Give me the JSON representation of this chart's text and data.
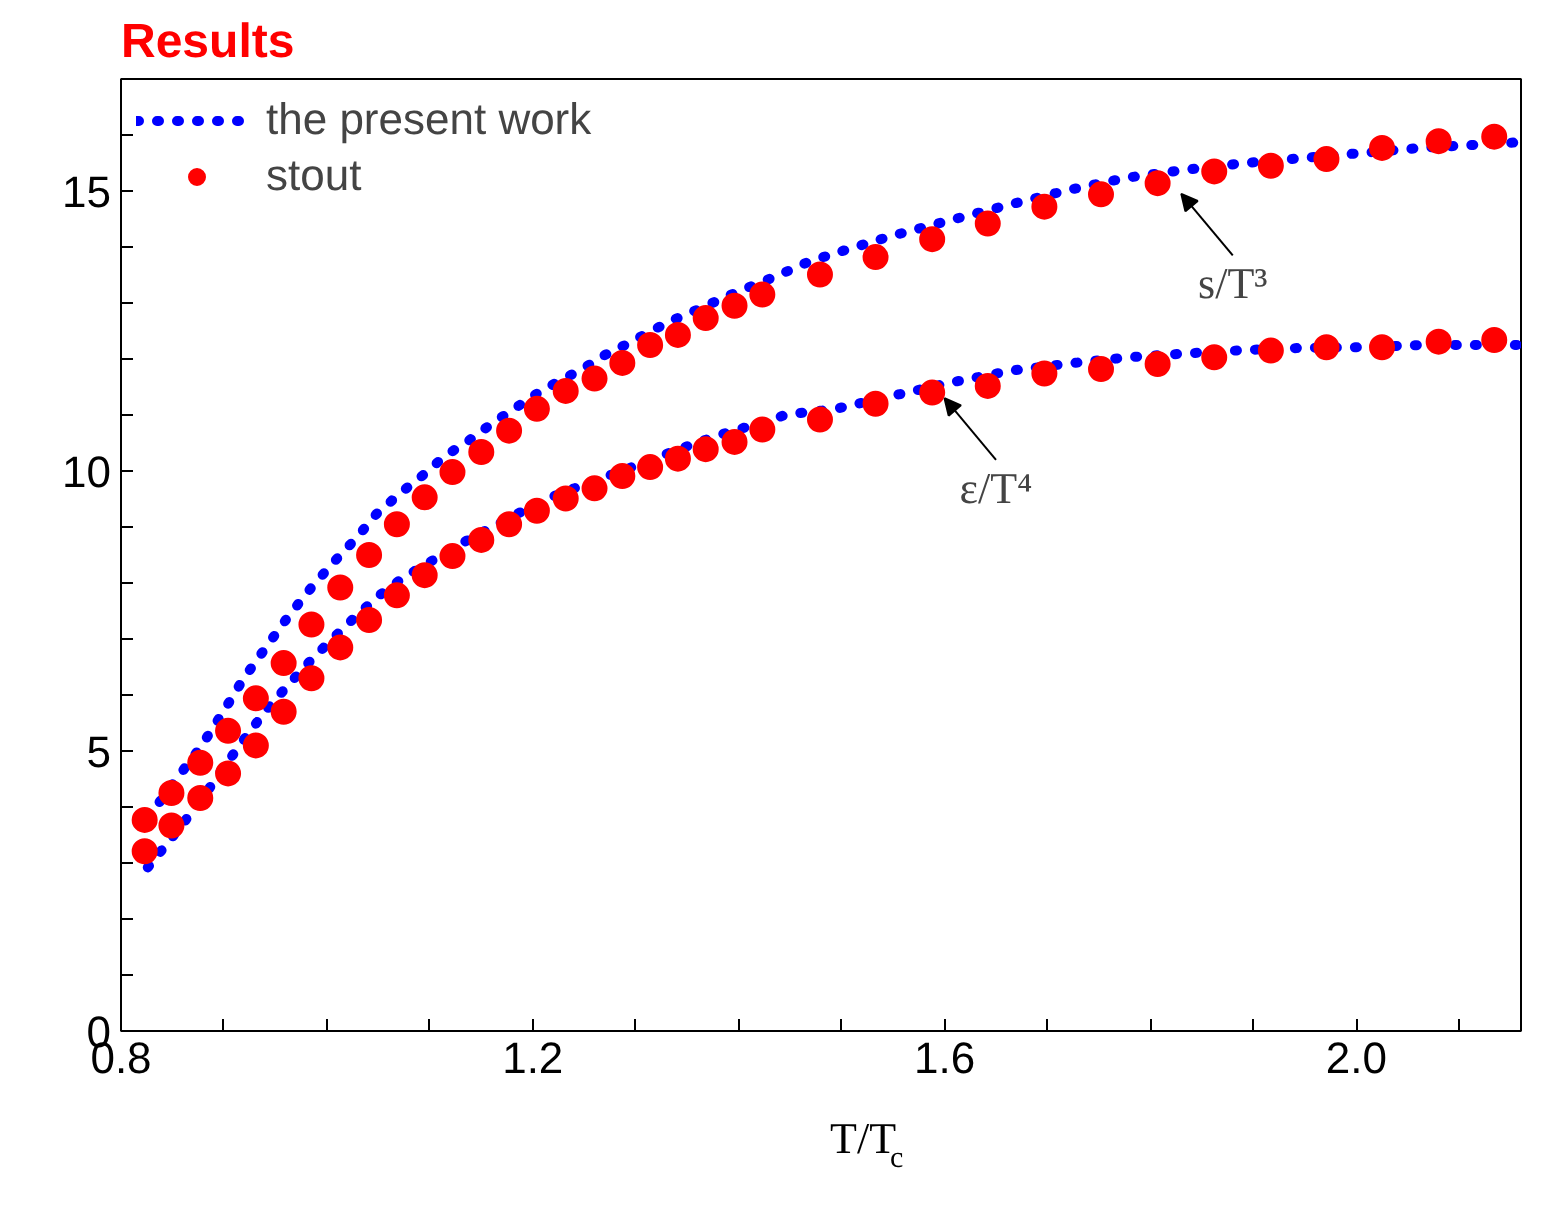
{
  "chart_data": {
    "type": "line",
    "title": "Results",
    "xlabel": "T/T$_{c}$",
    "xlim": [
      0.8,
      2.16
    ],
    "ylim": [
      0,
      17
    ],
    "xticks": [
      0.8,
      {
        "value": 0.9,
        "label": null
      },
      {
        "value": 1.0,
        "label": null
      },
      {
        "value": 1.1,
        "label": null
      },
      1.2,
      {
        "value": 1.3,
        "label": null
      },
      {
        "value": 1.4,
        "label": null
      },
      {
        "value": 1.5,
        "label": null
      },
      1.6,
      {
        "value": 1.7,
        "label": null
      },
      {
        "value": 1.8,
        "label": null
      },
      {
        "value": 1.9,
        "label": null
      },
      {
        "value": 2.0,
        "label": "2.0"
      },
      {
        "value": 2.1,
        "label": null
      }
    ],
    "yticks": [
      0,
      {
        "value": 1,
        "label": null
      },
      {
        "value": 2,
        "label": null
      },
      {
        "value": 3,
        "label": null
      },
      {
        "value": 4,
        "label": null
      },
      5,
      {
        "value": 6,
        "label": null
      },
      {
        "value": 7,
        "label": null
      },
      {
        "value": 8,
        "label": null
      },
      {
        "value": 9,
        "label": null
      },
      10,
      {
        "value": 11,
        "label": null
      },
      {
        "value": 12,
        "label": null
      },
      {
        "value": 13,
        "label": null
      },
      {
        "value": 14,
        "label": null
      },
      15,
      {
        "value": 16,
        "label": null
      }
    ],
    "grid": false,
    "legend": "top left",
    "annotations": [
      {
        "text": "s/T³",
        "x": 1.83,
        "y": 15.2
      },
      {
        "text": "ε/T⁴",
        "x": 1.6,
        "y": 11.55
      }
    ],
    "series": [
      {
        "name": "the present work",
        "line_style": "dotted",
        "marker": "none",
        "color": "#0000ff",
        "x": [
          0.826,
          0.851,
          0.877,
          0.898,
          0.919,
          0.94,
          0.962,
          0.985,
          1.007,
          1.029,
          1.048,
          1.073,
          1.095,
          1.114,
          1.137,
          1.159,
          1.181,
          1.203,
          1.225,
          1.248,
          1.27,
          1.292,
          1.314,
          1.333,
          1.356,
          1.378,
          1.4,
          1.422,
          1.444,
          1.466,
          1.492,
          1.549,
          1.606,
          1.664,
          1.721,
          1.778,
          1.835,
          1.892,
          1.949,
          2.006,
          2.063,
          2.12,
          2.158
        ],
        "values": [
          3.8,
          4.43,
          5.06,
          5.66,
          6.29,
          6.83,
          7.39,
          7.92,
          8.38,
          8.81,
          9.23,
          9.63,
          9.95,
          10.26,
          10.53,
          10.83,
          11.1,
          11.37,
          11.6,
          11.82,
          12.07,
          12.27,
          12.49,
          12.67,
          12.85,
          13.03,
          13.21,
          13.37,
          13.54,
          13.72,
          13.88,
          14.2,
          14.48,
          14.76,
          15.02,
          15.24,
          15.38,
          15.5,
          15.59,
          15.68,
          15.77,
          15.83,
          15.87
        ]
      },
      {
        "line_style": "dotted",
        "marker": "none",
        "color": "#0000ff",
        "x": [
          0.826,
          0.851,
          0.877,
          0.898,
          0.92,
          0.941,
          0.964,
          0.985,
          1.007,
          1.029,
          1.051,
          1.073,
          1.095,
          1.117,
          1.14,
          1.162,
          1.184,
          1.206,
          1.225,
          1.248,
          1.27,
          1.292,
          1.314,
          1.336,
          1.359,
          1.381,
          1.403,
          1.425,
          1.447,
          1.492,
          1.549,
          1.606,
          1.664,
          1.721,
          1.778,
          1.835,
          1.892,
          1.949,
          2.006,
          2.063,
          2.12,
          2.158
        ],
        "values": [
          2.92,
          3.49,
          4.1,
          4.66,
          5.22,
          5.73,
          6.21,
          6.63,
          7.03,
          7.42,
          7.78,
          8.08,
          8.32,
          8.56,
          8.8,
          9.01,
          9.23,
          9.41,
          9.59,
          9.74,
          9.89,
          10.04,
          10.19,
          10.35,
          10.5,
          10.64,
          10.76,
          10.88,
          11.01,
          11.1,
          11.34,
          11.58,
          11.79,
          11.92,
          12.03,
          12.1,
          12.16,
          12.2,
          12.21,
          12.25,
          12.25,
          12.25
        ]
      },
      {
        "name": "stout",
        "type": "scatter",
        "marker": "circle",
        "color": "#ff0000",
        "x": [
          0.823,
          0.849,
          0.877,
          0.904,
          0.931,
          0.958,
          0.985,
          1.013,
          1.041,
          1.068,
          1.095,
          1.122,
          1.15,
          1.177,
          1.204,
          1.232,
          1.26,
          1.287,
          1.314,
          1.341,
          1.368,
          1.396,
          1.423,
          1.479,
          1.533,
          1.588,
          1.642,
          1.697,
          1.752,
          1.807,
          1.862,
          1.917,
          1.971,
          2.025,
          2.08,
          2.134
        ],
        "values": [
          3.77,
          4.25,
          4.79,
          5.36,
          5.94,
          6.57,
          7.26,
          7.92,
          8.5,
          9.05,
          9.53,
          9.98,
          10.34,
          10.72,
          11.11,
          11.43,
          11.65,
          11.93,
          12.25,
          12.43,
          12.73,
          12.95,
          13.15,
          13.51,
          13.82,
          14.14,
          14.42,
          14.72,
          14.94,
          15.14,
          15.35,
          15.45,
          15.57,
          15.77,
          15.89,
          15.97
        ]
      },
      {
        "type": "scatter",
        "marker": "circle",
        "color": "#ff0000",
        "x": [
          0.823,
          0.849,
          0.877,
          0.904,
          0.931,
          0.958,
          0.985,
          1.013,
          1.041,
          1.068,
          1.095,
          1.122,
          1.15,
          1.177,
          1.204,
          1.232,
          1.26,
          1.287,
          1.314,
          1.341,
          1.368,
          1.396,
          1.423,
          1.479,
          1.533,
          1.588,
          1.642,
          1.697,
          1.752,
          1.807,
          1.862,
          1.917,
          1.971,
          2.025,
          2.08,
          2.134
        ],
        "values": [
          3.21,
          3.67,
          4.16,
          4.6,
          5.1,
          5.7,
          6.3,
          6.85,
          7.34,
          7.78,
          8.14,
          8.48,
          8.77,
          9.05,
          9.29,
          9.51,
          9.69,
          9.91,
          10.07,
          10.22,
          10.39,
          10.52,
          10.74,
          10.92,
          11.2,
          11.4,
          11.52,
          11.74,
          11.82,
          11.91,
          12.03,
          12.15,
          12.21,
          12.21,
          12.31,
          12.34
        ]
      }
    ]
  }
}
